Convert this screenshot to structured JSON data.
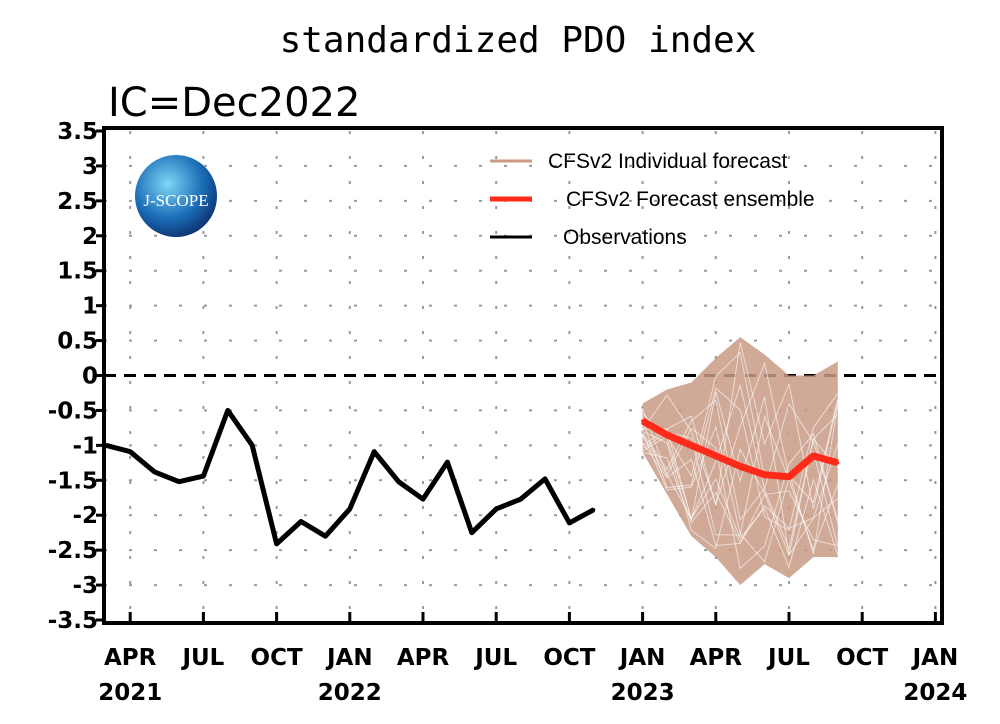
{
  "chart_data": {
    "type": "line",
    "title": "standardized PDO index",
    "subtitle": "IC=Dec2022",
    "xlabel": "",
    "ylabel": "",
    "ylim": [
      -3.5,
      3.5
    ],
    "yticks": [
      "3.5",
      "3",
      "2.5",
      "2",
      "1.5",
      "1",
      "0.5",
      "0",
      "-0.5",
      "-1",
      "-1.5",
      "-2",
      "-2.5",
      "-3",
      "-3.5"
    ],
    "xlim": [
      "2021-01",
      "2024-01"
    ],
    "xticks": [
      {
        "month": "APR",
        "year": "2021",
        "date": "2021-04"
      },
      {
        "month": "JUL",
        "year": "",
        "date": "2021-07"
      },
      {
        "month": "OCT",
        "year": "",
        "date": "2021-10"
      },
      {
        "month": "JAN",
        "year": "2022",
        "date": "2022-01"
      },
      {
        "month": "APR",
        "year": "",
        "date": "2022-04"
      },
      {
        "month": "JUL",
        "year": "",
        "date": "2022-07"
      },
      {
        "month": "OCT",
        "year": "",
        "date": "2022-10"
      },
      {
        "month": "JAN",
        "year": "2023",
        "date": "2023-01"
      },
      {
        "month": "APR",
        "year": "",
        "date": "2023-04"
      },
      {
        "month": "JUL",
        "year": "",
        "date": "2023-07"
      },
      {
        "month": "OCT",
        "year": "",
        "date": "2023-10"
      },
      {
        "month": "JAN",
        "year": "2024",
        "date": "2024-01"
      }
    ],
    "grid": true,
    "zero_line": "dashed",
    "legend_placement": "top-center",
    "logo": "J-SCOPE",
    "series": [
      {
        "name": "CFSv2 Individual forecast",
        "color": "#c89a85",
        "kind": "envelope",
        "x": [
          "2023-01",
          "2023-02",
          "2023-03",
          "2023-04",
          "2023-05",
          "2023-06",
          "2023-07",
          "2023-08",
          "2023-09"
        ],
        "upper": [
          -0.4,
          -0.2,
          -0.1,
          0.25,
          0.55,
          0.3,
          0.0,
          0.0,
          0.2
        ],
        "lower": [
          -1.1,
          -1.7,
          -2.3,
          -2.6,
          -3.0,
          -2.7,
          -2.9,
          -2.6,
          -2.6
        ]
      },
      {
        "name": "CFSv2 Forecast ensemble",
        "color": "#ff2a1a",
        "x": [
          "2023-01",
          "2023-02",
          "2023-03",
          "2023-04",
          "2023-05",
          "2023-06",
          "2023-07",
          "2023-08",
          "2023-09"
        ],
        "values": [
          -0.65,
          -0.85,
          -1.0,
          -1.15,
          -1.3,
          -1.42,
          -1.45,
          -1.15,
          -1.25
        ]
      },
      {
        "name": "Observations",
        "color": "#000000",
        "x": [
          "2021-03",
          "2021-04",
          "2021-05",
          "2021-06",
          "2021-07",
          "2021-08",
          "2021-09",
          "2021-10",
          "2021-11",
          "2021-12",
          "2022-01",
          "2022-02",
          "2022-03",
          "2022-04",
          "2022-05",
          "2022-06",
          "2022-07",
          "2022-08",
          "2022-09",
          "2022-10",
          "2022-11"
        ],
        "values": [
          -1.0,
          -1.09,
          -1.38,
          -1.52,
          -1.44,
          -0.5,
          -1.0,
          -2.41,
          -2.09,
          -2.3,
          -1.91,
          -1.09,
          -1.52,
          -1.77,
          -1.24,
          -2.25,
          -1.91,
          -1.77,
          -1.48,
          -2.11,
          -1.92
        ]
      }
    ]
  }
}
